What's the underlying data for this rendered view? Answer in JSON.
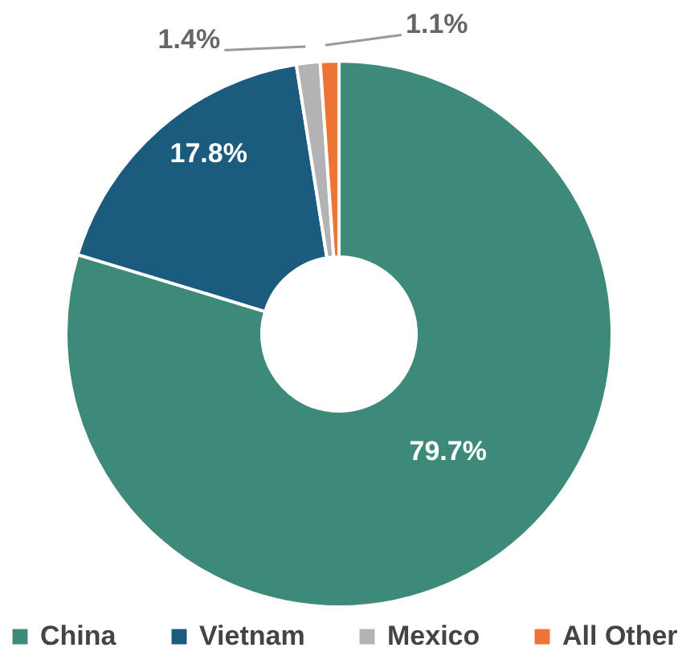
{
  "chart_data": {
    "type": "donut",
    "categories": [
      "China",
      "Vietnam",
      "Mexico",
      "All Other"
    ],
    "values": [
      79.7,
      17.8,
      1.4,
      1.1
    ],
    "colors": [
      "#3d8a78",
      "#1b5b7e",
      "#b3b3b3",
      "#ee7434"
    ],
    "value_labels": [
      "79.7%",
      "17.8%",
      "1.4%",
      "1.1%"
    ],
    "legend": "bottom"
  }
}
